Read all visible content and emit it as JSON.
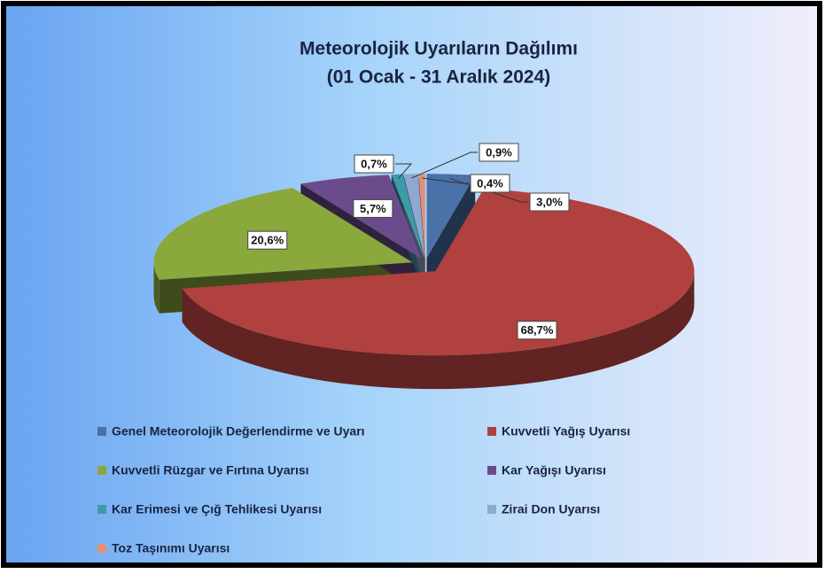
{
  "chart_data": {
    "type": "pie3d",
    "title": "Meteorolojik Uyarıların Dağılımı",
    "subtitle": "(01 Ocak - 31 Aralık 2024)",
    "categories": [
      "Genel Meteorolojik Değerlendirme ve Uyarı",
      "Kuvvetli Yağış Uyarısı",
      "Kuvvetli Rüzgar ve Fırtına Uyarısı",
      "Kar Yağışı Uyarısı",
      "Kar Erimesi ve Çığ Tehlikesi Uyarısı",
      "Zirai Don Uyarısı",
      "Toz Taşınımı Uyarısı"
    ],
    "values": [
      3.0,
      68.7,
      20.6,
      5.7,
      0.7,
      0.9,
      0.4
    ],
    "value_labels": [
      "3,0%",
      "68,7%",
      "20,6%",
      "5,7%",
      "0,7%",
      "0,9%",
      "0,4%"
    ],
    "colors": [
      "#4a72a8",
      "#b0413e",
      "#8aa83c",
      "#6a4c8c",
      "#3e9aa8",
      "#8fa8d0",
      "#e0907a"
    ],
    "legend": "bottom"
  }
}
